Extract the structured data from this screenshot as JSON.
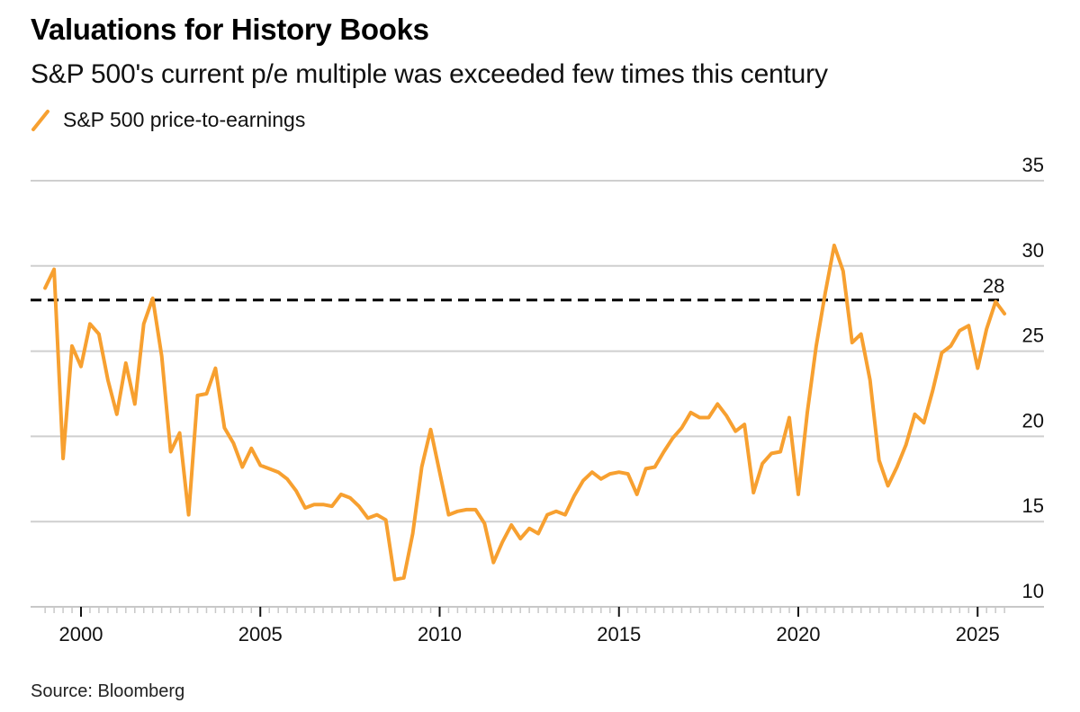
{
  "header": {
    "title": "Valuations for History Books",
    "subtitle": "S&P 500's current p/e multiple was exceeded few times this century"
  },
  "legend": [
    {
      "label": "S&P 500 price-to-earnings",
      "color": "#F7A030",
      "icon": "line-swatch-icon"
    }
  ],
  "footer": {
    "source": "Source: Bloomberg"
  },
  "chart_data": {
    "type": "line",
    "title": "Valuations for History Books",
    "subtitle": "S&P 500's current p/e multiple was exceeded few times this century",
    "xlabel": "",
    "ylabel": "",
    "x_start": 1999.0,
    "x_step": 0.25,
    "xlim": [
      1998.6,
      2026.8
    ],
    "ylim": [
      10,
      35
    ],
    "yticks": [
      10,
      15,
      20,
      25,
      30,
      35
    ],
    "xticks": [
      2000,
      2005,
      2010,
      2015,
      2020,
      2025
    ],
    "xtick_labels": [
      "2000",
      "2005",
      "2010",
      "2015",
      "2020",
      "2025"
    ],
    "ytick_labels": [
      "10",
      "15",
      "20",
      "25",
      "30",
      "35"
    ],
    "grid": true,
    "legend_position": "top-left",
    "series": [
      {
        "name": "S&P 500 price-to-earnings",
        "color": "#F7A030",
        "values": [
          28.7,
          29.8,
          18.7,
          25.3,
          24.1,
          26.6,
          26.0,
          23.3,
          21.3,
          24.3,
          21.9,
          26.6,
          28.1,
          24.7,
          19.1,
          20.2,
          15.4,
          22.4,
          22.5,
          24.0,
          20.5,
          19.6,
          18.2,
          19.3,
          18.3,
          18.1,
          17.9,
          17.5,
          16.8,
          15.8,
          16.0,
          16.0,
          15.9,
          16.6,
          16.4,
          15.9,
          15.2,
          15.4,
          15.1,
          11.6,
          11.7,
          14.3,
          18.2,
          20.4,
          17.9,
          15.4,
          15.6,
          15.7,
          15.7,
          14.9,
          12.6,
          13.8,
          14.8,
          14.0,
          14.6,
          14.3,
          15.4,
          15.6,
          15.4,
          16.5,
          17.4,
          17.9,
          17.5,
          17.8,
          17.9,
          17.8,
          16.6,
          18.1,
          18.2,
          19.1,
          19.9,
          20.5,
          21.4,
          21.1,
          21.1,
          21.9,
          21.2,
          20.3,
          20.7,
          16.7,
          18.4,
          19.0,
          19.1,
          21.1,
          16.6,
          21.4,
          25.3,
          28.4,
          31.2,
          29.7,
          25.5,
          26.0,
          23.3,
          18.6,
          17.1,
          18.2,
          19.5,
          21.3,
          20.8,
          22.7,
          24.9,
          25.3,
          26.2,
          26.5,
          24.0,
          26.3,
          27.9,
          27.2
        ]
      }
    ],
    "reference_line": {
      "value": 28,
      "label": "28",
      "style": "dashed",
      "color": "#000000"
    }
  }
}
